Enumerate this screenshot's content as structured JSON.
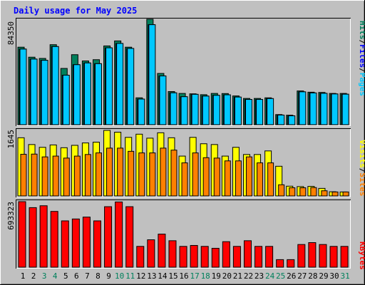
{
  "title": "Daily usage for May 2025",
  "chart_data": [
    {
      "type": "bar",
      "panel": "pages-files-hits",
      "categories": [
        "1",
        "2",
        "3",
        "4",
        "5",
        "6",
        "7",
        "8",
        "9",
        "10",
        "11",
        "12",
        "13",
        "14",
        "15",
        "16",
        "17",
        "18",
        "19",
        "20",
        "21",
        "22",
        "23",
        "24",
        "25",
        "26",
        "27",
        "28",
        "29",
        "30",
        "31"
      ],
      "ylim": [
        0,
        84350
      ],
      "max_label": "84350",
      "series": [
        {
          "name": "Hits",
          "color": "#00805c",
          "values": [
            62000,
            54000,
            53000,
            64000,
            45000,
            56000,
            51000,
            52000,
            63000,
            67000,
            62000,
            21500,
            84350,
            41000,
            26500,
            25000,
            24700,
            24000,
            25000,
            24900,
            23000,
            21000,
            21000,
            21500,
            8100,
            7600,
            27000,
            26000,
            25800,
            25000,
            25000
          ]
        },
        {
          "name": "Files",
          "color": "#0000ff",
          "values": [
            60500,
            52500,
            51500,
            62500,
            39600,
            48000,
            49400,
            48800,
            61500,
            65000,
            61000,
            20500,
            80000,
            39000,
            25500,
            22400,
            24300,
            22900,
            23500,
            23900,
            22100,
            20200,
            20200,
            20900,
            7700,
            7100,
            26300,
            25400,
            25100,
            24600,
            24400
          ]
        },
        {
          "name": "Pages",
          "color": "#00c8ff",
          "values": [
            60500,
            52500,
            51500,
            62500,
            39600,
            48000,
            49400,
            48800,
            61500,
            65000,
            61000,
            20500,
            80000,
            39000,
            25500,
            22400,
            24300,
            22900,
            23500,
            23900,
            22100,
            20200,
            20200,
            20900,
            7700,
            7100,
            26300,
            25400,
            25100,
            24600,
            24400
          ]
        }
      ]
    },
    {
      "type": "bar",
      "panel": "visits-sites",
      "categories": [
        "1",
        "2",
        "3",
        "4",
        "5",
        "6",
        "7",
        "8",
        "9",
        "10",
        "11",
        "12",
        "13",
        "14",
        "15",
        "16",
        "17",
        "18",
        "19",
        "20",
        "21",
        "22",
        "23",
        "24",
        "25",
        "26",
        "27",
        "28",
        "29",
        "30",
        "31"
      ],
      "ylim": [
        0,
        1645
      ],
      "max_label": "1645",
      "series": [
        {
          "name": "Visits",
          "color": "#ffff00",
          "values": [
            1460,
            1290,
            1220,
            1280,
            1210,
            1270,
            1330,
            1350,
            1645,
            1600,
            1470,
            1550,
            1450,
            1585,
            1460,
            1000,
            1470,
            1310,
            1290,
            1000,
            1220,
            1040,
            1040,
            1130,
            745,
            245,
            235,
            240,
            190,
            105,
            100
          ]
        },
        {
          "name": "Sites",
          "color": "#ff8000",
          "values": [
            1045,
            1050,
            980,
            1000,
            950,
            1000,
            1040,
            1080,
            1200,
            1200,
            1120,
            1080,
            1080,
            1200,
            1150,
            830,
            1080,
            960,
            950,
            880,
            880,
            980,
            830,
            830,
            280,
            205,
            205,
            210,
            130,
            100,
            100
          ]
        }
      ]
    },
    {
      "type": "bar",
      "panel": "kbytes",
      "categories": [
        "1",
        "2",
        "3",
        "4",
        "5",
        "6",
        "7",
        "8",
        "9",
        "10",
        "11",
        "12",
        "13",
        "14",
        "15",
        "16",
        "17",
        "18",
        "19",
        "20",
        "21",
        "22",
        "23",
        "24",
        "25",
        "26",
        "27",
        "28",
        "29",
        "30",
        "31"
      ],
      "ylim": [
        0,
        693323
      ],
      "max_label": "693323",
      "series": [
        {
          "name": "KBytes",
          "color": "#ff0000",
          "values": [
            693323,
            630000,
            650000,
            590000,
            490000,
            510000,
            530000,
            490000,
            640000,
            690000,
            640000,
            220000,
            290000,
            350000,
            280000,
            220000,
            230000,
            220000,
            200000,
            270000,
            220000,
            280000,
            220000,
            220000,
            80000,
            80000,
            240000,
            260000,
            240000,
            220000,
            220000
          ]
        }
      ]
    }
  ],
  "weekend_days": [
    3,
    4,
    10,
    11,
    17,
    18,
    24,
    25,
    31
  ],
  "colors": {
    "background": "#c0c0c0",
    "title": "#0000ff",
    "weekday_label": "#000000",
    "weekend_label": "#00805c"
  }
}
